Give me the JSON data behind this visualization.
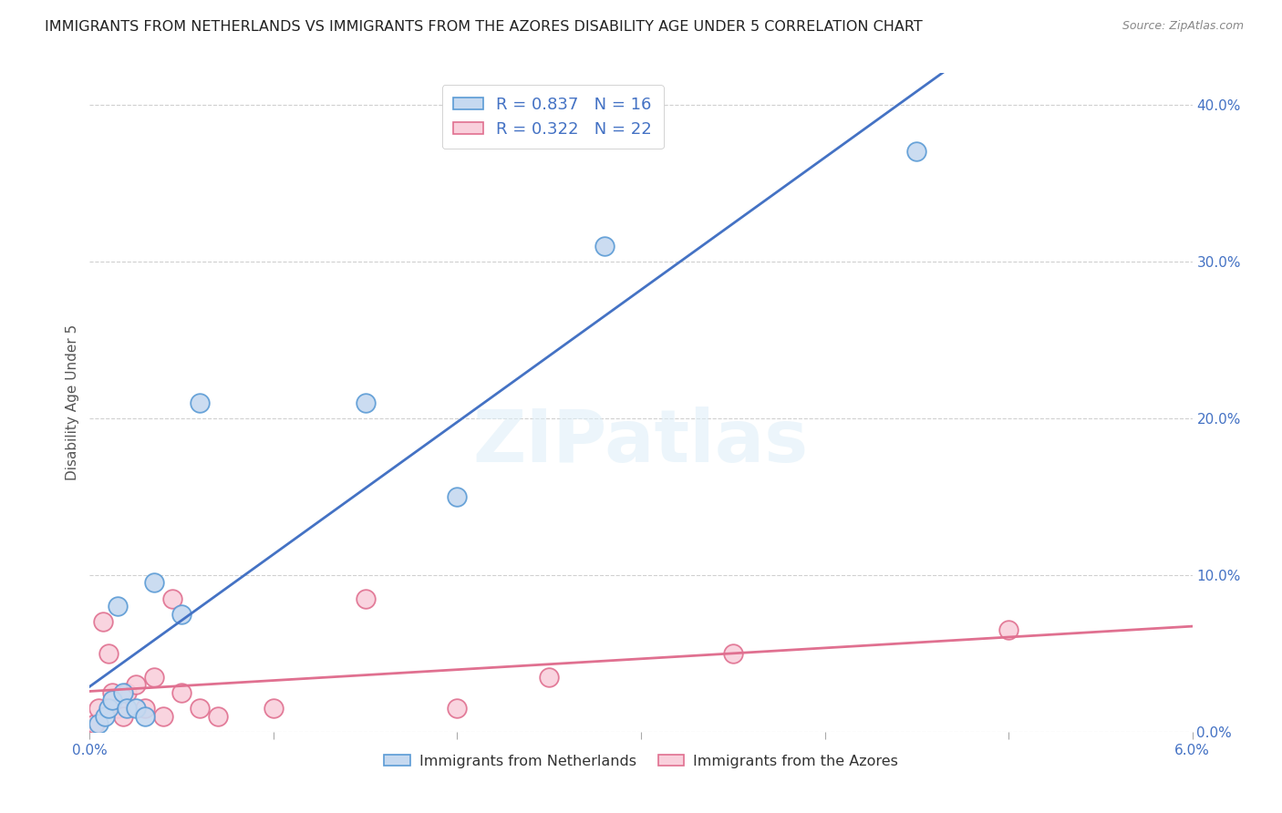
{
  "title": "IMMIGRANTS FROM NETHERLANDS VS IMMIGRANTS FROM THE AZORES DISABILITY AGE UNDER 5 CORRELATION CHART",
  "source": "Source: ZipAtlas.com",
  "ylabel": "Disability Age Under 5",
  "x_min": 0.0,
  "x_max": 6.0,
  "y_min": 0.0,
  "y_max": 42.0,
  "legend1_label": "R = 0.837   N = 16",
  "legend2_label": "R = 0.322   N = 22",
  "legend_bottom1": "Immigrants from Netherlands",
  "legend_bottom2": "Immigrants from the Azores",
  "blue_scatter_x": [
    0.05,
    0.08,
    0.1,
    0.12,
    0.15,
    0.18,
    0.2,
    0.25,
    0.3,
    0.35,
    0.5,
    0.6,
    1.5,
    2.0,
    2.8,
    4.5
  ],
  "blue_scatter_y": [
    0.5,
    1.0,
    1.5,
    2.0,
    8.0,
    2.5,
    1.5,
    1.5,
    1.0,
    9.5,
    7.5,
    21.0,
    21.0,
    15.0,
    31.0,
    37.0
  ],
  "pink_scatter_x": [
    0.03,
    0.05,
    0.07,
    0.1,
    0.12,
    0.15,
    0.18,
    0.2,
    0.25,
    0.3,
    0.35,
    0.4,
    0.45,
    0.5,
    0.6,
    0.7,
    1.0,
    1.5,
    2.0,
    2.5,
    3.5,
    5.0
  ],
  "pink_scatter_y": [
    0.5,
    1.5,
    7.0,
    5.0,
    2.5,
    1.5,
    1.0,
    2.5,
    3.0,
    1.5,
    3.5,
    1.0,
    8.5,
    2.5,
    1.5,
    1.0,
    1.5,
    8.5,
    1.5,
    3.5,
    5.0,
    6.5
  ],
  "blue_color": "#c6d9f0",
  "blue_edge_color": "#5b9bd5",
  "pink_color": "#f9d0dc",
  "pink_edge_color": "#e07090",
  "blue_line_color": "#4472c4",
  "pink_line_color": "#e07090",
  "watermark_text": "ZIPatlas",
  "grid_color": "#d0d0d0",
  "title_fontsize": 11.5,
  "source_fontsize": 9,
  "tick_label_color": "#4472c4"
}
